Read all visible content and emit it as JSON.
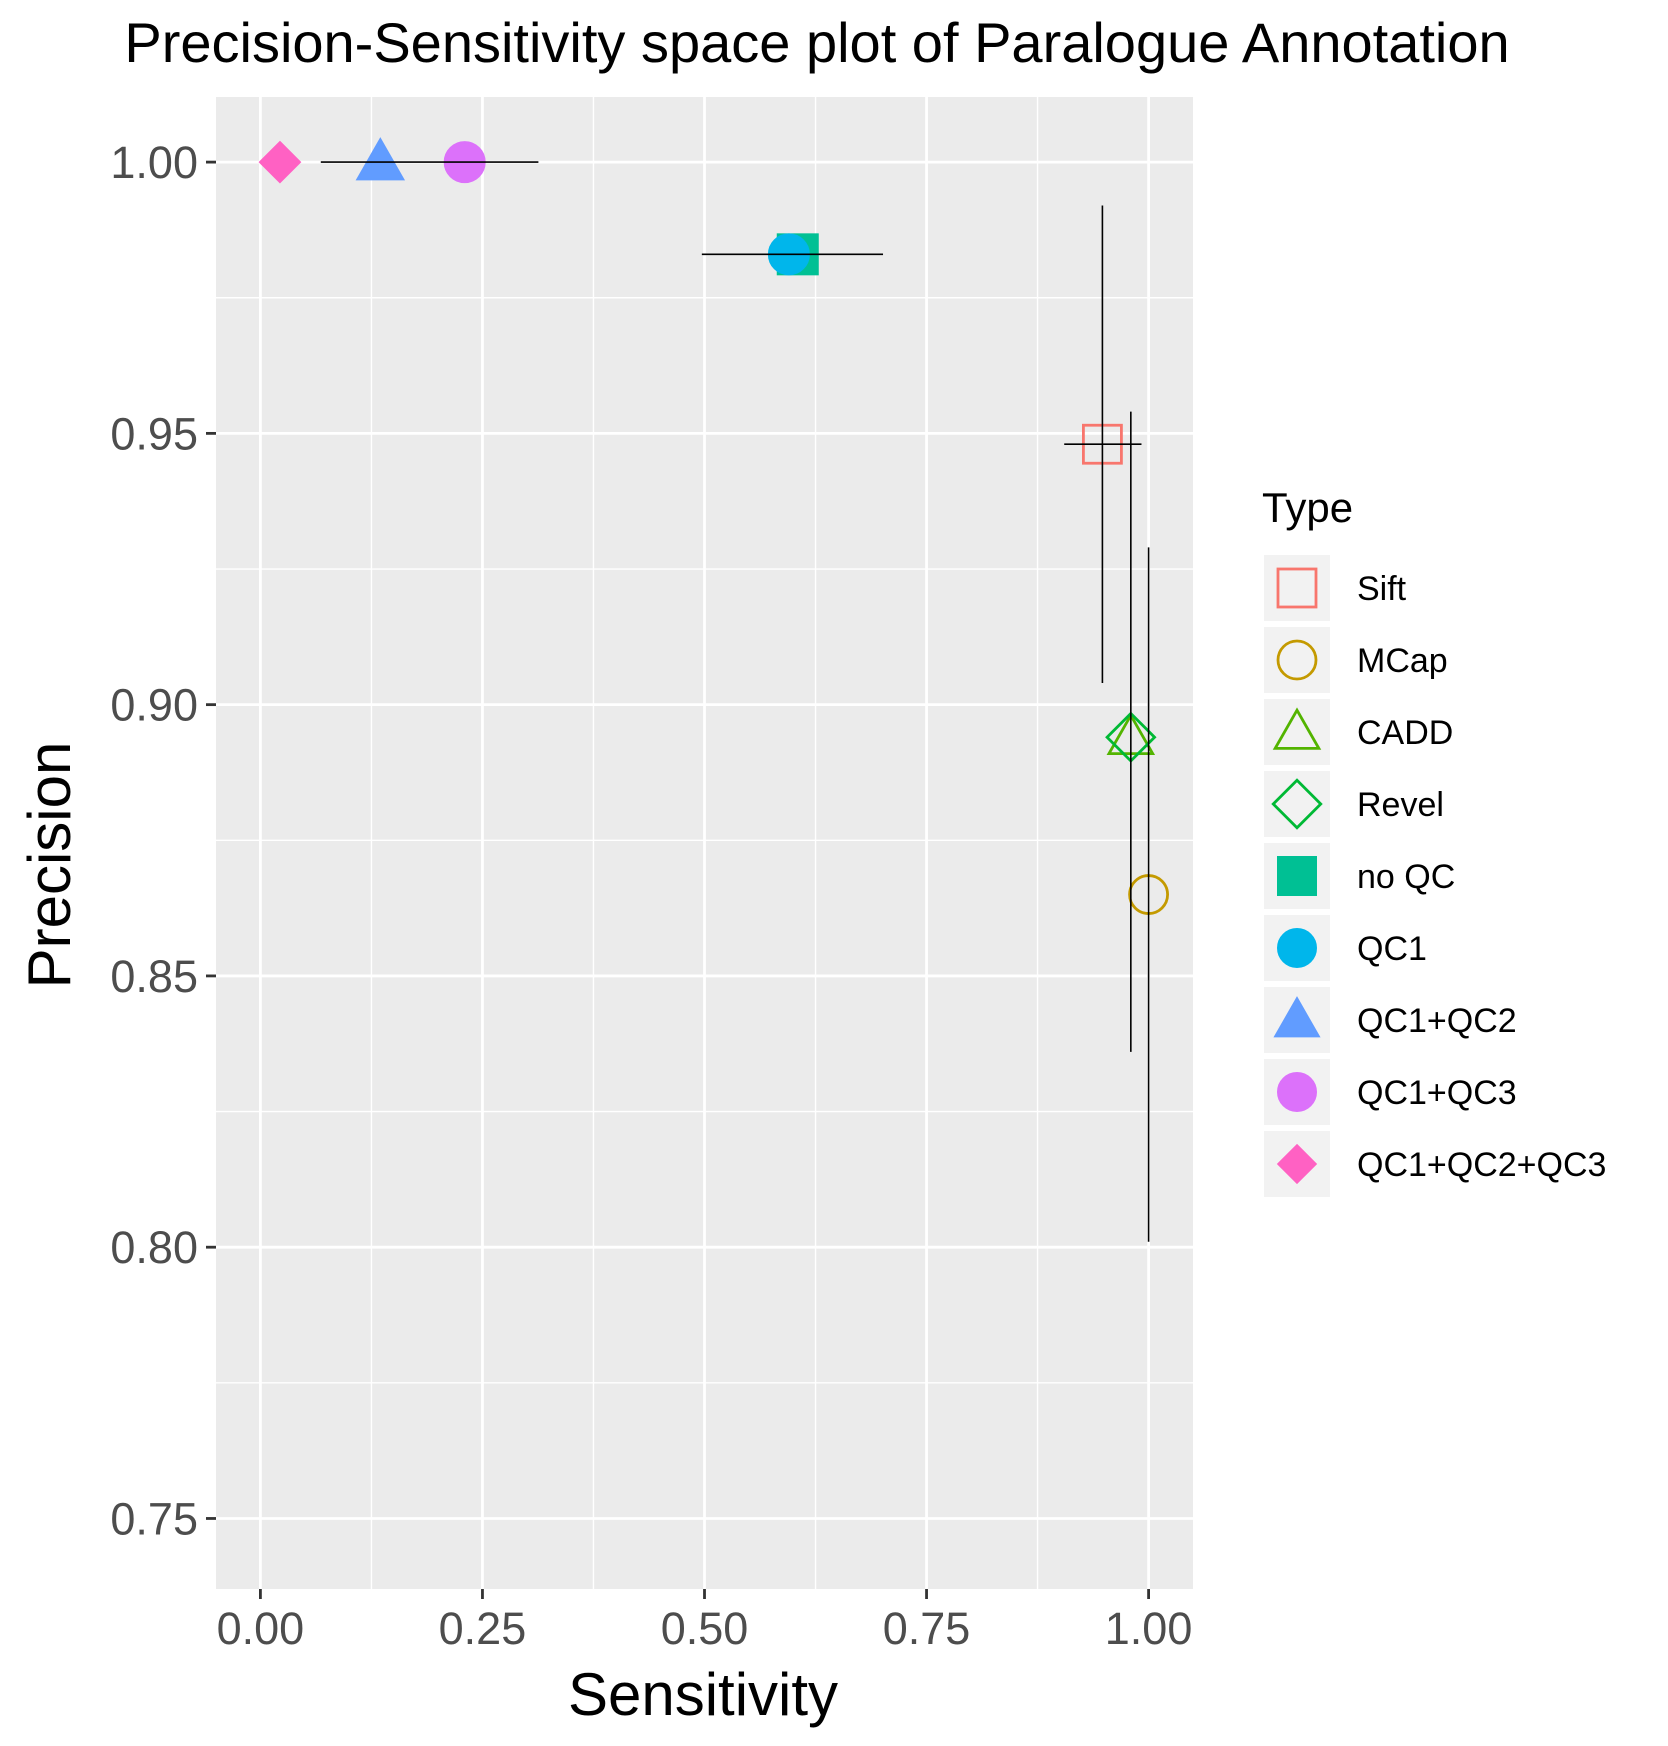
{
  "chart_data": {
    "type": "scatter",
    "title": "Precision-Sensitivity space plot of Paralogue Annotation",
    "xlabel": "Sensitivity",
    "ylabel": "Precision",
    "xlim": [
      -0.05,
      1.05
    ],
    "ylim": [
      0.737,
      1.012
    ],
    "x_ticks": [
      0.0,
      0.25,
      0.5,
      0.75,
      1.0
    ],
    "x_tick_labels": [
      "0.00",
      "0.25",
      "0.50",
      "0.75",
      "1.00"
    ],
    "y_ticks": [
      0.75,
      0.8,
      0.85,
      0.9,
      0.95,
      1.0
    ],
    "y_tick_labels": [
      "0.75",
      "0.80",
      "0.85",
      "0.90",
      "0.95",
      "1.00"
    ],
    "grid": true,
    "background": "#ebebeb",
    "legend": {
      "title": "Type",
      "position": "right"
    },
    "series": [
      {
        "name": "Sift",
        "shape": "square-open",
        "color": "#F8766D",
        "x": 0.948,
        "y": 0.948,
        "xerr": [
          0.905,
          0.992
        ],
        "yerr": [
          0.904,
          0.992
        ]
      },
      {
        "name": "MCap",
        "shape": "circle-open",
        "color": "#C49A00",
        "x": 1.0,
        "y": 0.865,
        "xerr": null,
        "yerr": [
          0.801,
          0.929
        ]
      },
      {
        "name": "CADD",
        "shape": "triangle-open",
        "color": "#53B400",
        "x": 0.98,
        "y": 0.894,
        "xerr": null,
        "yerr": [
          0.836,
          0.954
        ]
      },
      {
        "name": "Revel",
        "shape": "diamond-open",
        "color": "#00B935",
        "x": 0.98,
        "y": 0.894,
        "xerr": null,
        "yerr": [
          0.836,
          0.954
        ]
      },
      {
        "name": "no QC",
        "shape": "square-filled",
        "color": "#00C094",
        "x": 0.605,
        "y": 0.983,
        "xerr": [
          0.497,
          0.701
        ],
        "yerr": null
      },
      {
        "name": "QC1",
        "shape": "circle-filled",
        "color": "#00B6EB",
        "x": 0.595,
        "y": 0.983,
        "xerr": [
          0.497,
          0.701
        ],
        "yerr": null
      },
      {
        "name": "QC1+QC2",
        "shape": "triangle-filled",
        "color": "#619CFF",
        "x": 0.135,
        "y": 1.0,
        "xerr": [
          0.068,
          0.313
        ],
        "yerr": null
      },
      {
        "name": "QC1+QC3",
        "shape": "circle-filled",
        "color": "#DC71FA",
        "x": 0.23,
        "y": 1.0,
        "xerr": [
          0.068,
          0.313
        ],
        "yerr": null
      },
      {
        "name": "QC1+QC2+QC3",
        "shape": "diamond-filled",
        "color": "#FF61C3",
        "x": 0.022,
        "y": 1.0,
        "xerr": null,
        "yerr": null
      }
    ]
  }
}
